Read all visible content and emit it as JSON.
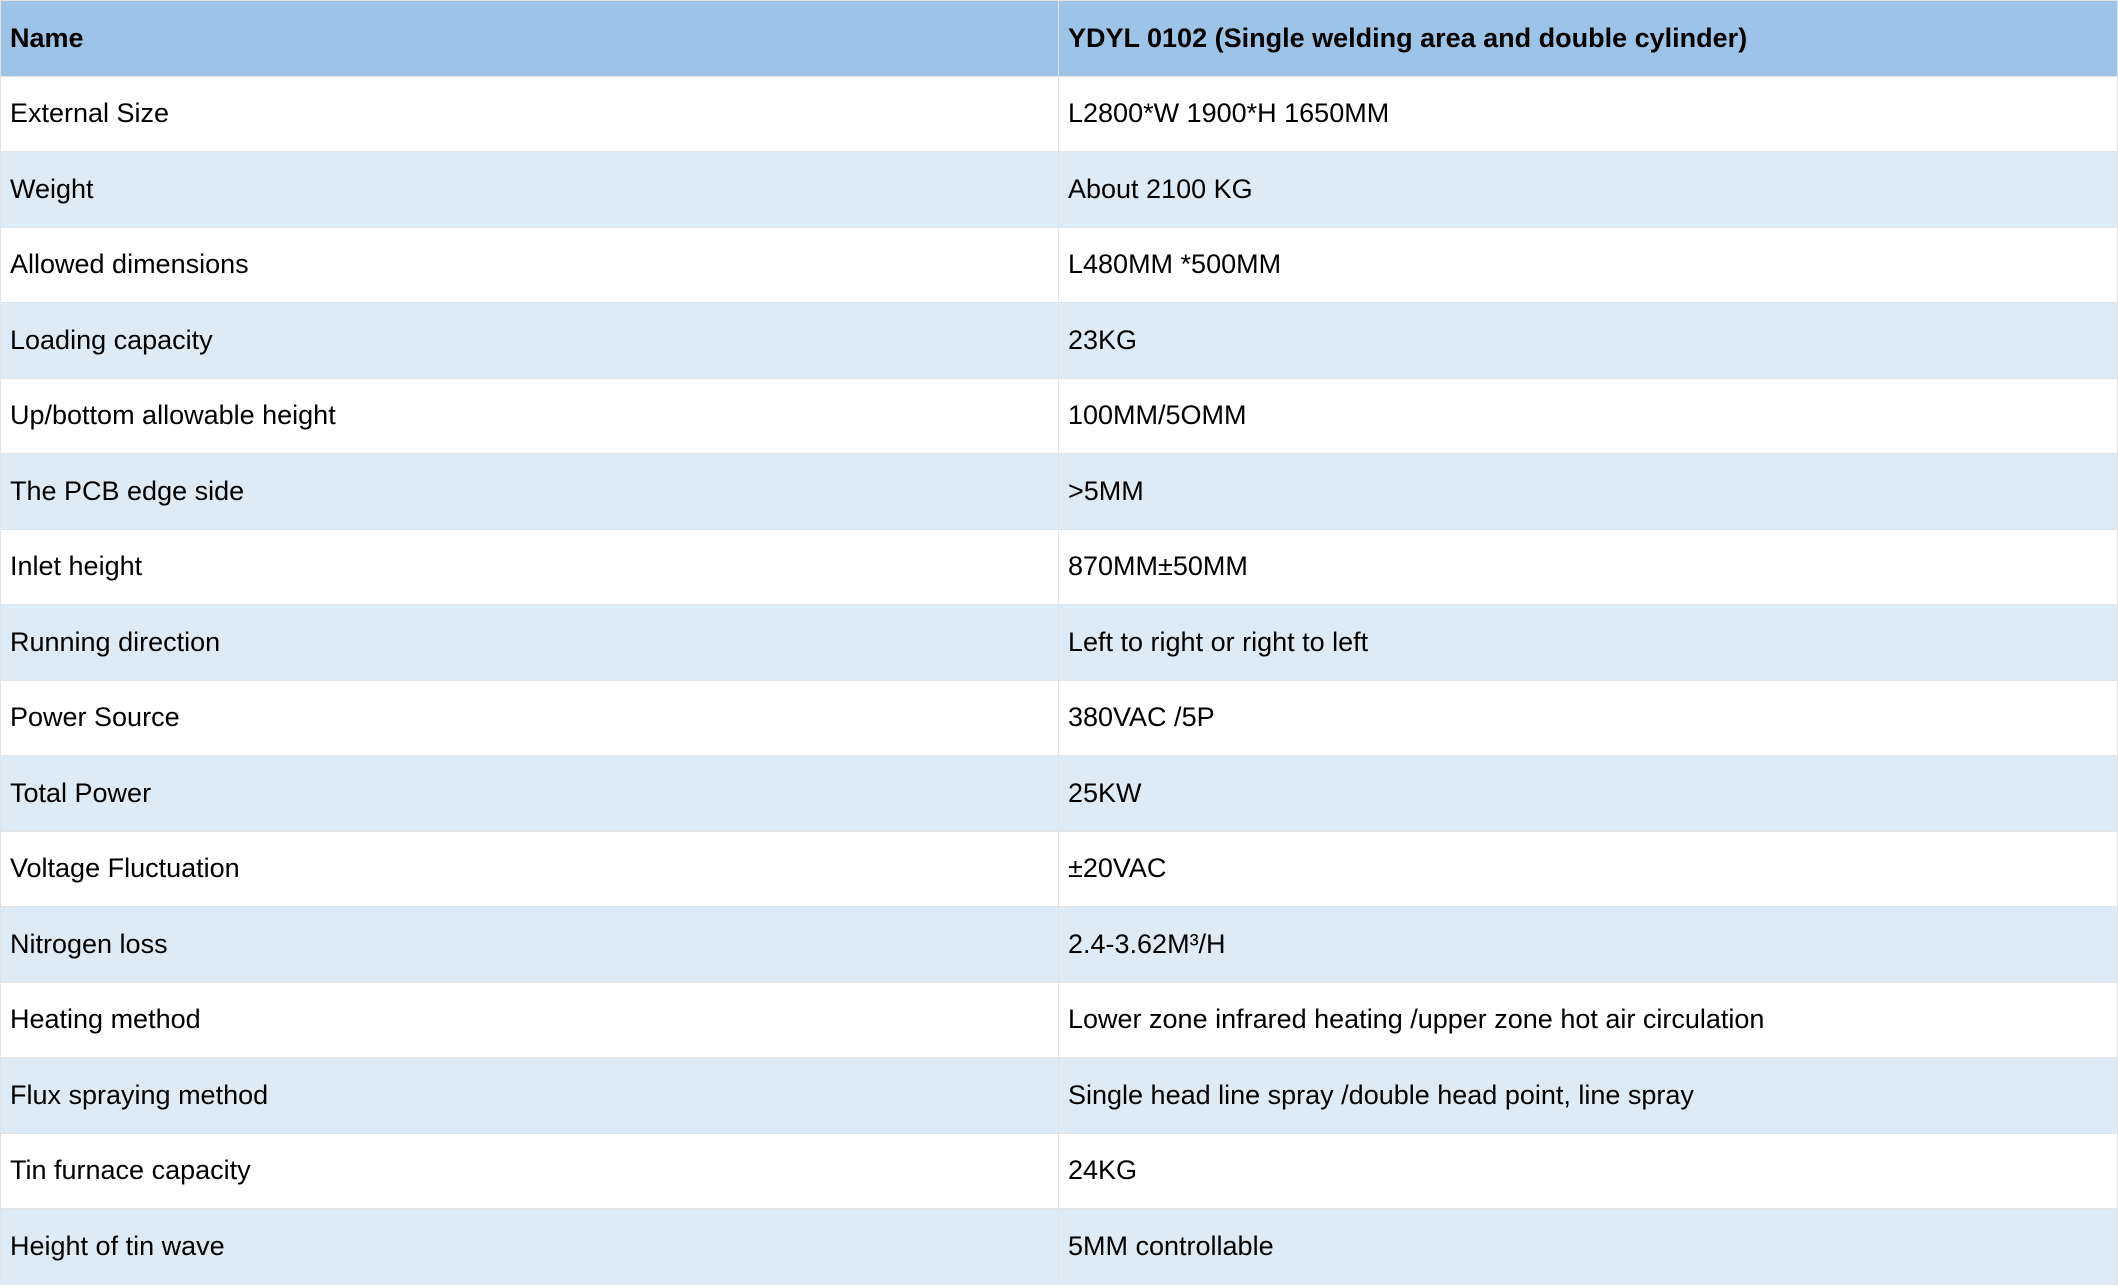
{
  "table": {
    "header": [
      "Name",
      "YDYL 0102 (Single welding area and double cylinder)"
    ],
    "rows": [
      [
        "External Size",
        "L2800*W 1900*H 1650MM"
      ],
      [
        "Weight",
        "About 2100 KG"
      ],
      [
        "Allowed dimensions",
        "L480MM *500MM"
      ],
      [
        "Loading capacity",
        "23KG"
      ],
      [
        "Up/bottom allowable height",
        "100MM/5OMM"
      ],
      [
        "The PCB edge side",
        ">5MM"
      ],
      [
        "Inlet height",
        "870MM±50MM"
      ],
      [
        "Running direction",
        "Left to right or right to left"
      ],
      [
        "Power Source",
        "380VAC /5P"
      ],
      [
        "Total Power",
        "25KW"
      ],
      [
        "Voltage Fluctuation",
        "±20VAC"
      ],
      [
        "Nitrogen loss",
        "2.4-3.62M³/H"
      ],
      [
        "Heating method",
        "Lower zone infrared heating /upper zone hot air circulation"
      ],
      [
        "Flux spraying method",
        "Single head line spray /double head point, line spray"
      ],
      [
        "Tin furnace capacity",
        "24KG"
      ],
      [
        "Height of tin wave",
        "5MM controllable"
      ]
    ]
  }
}
